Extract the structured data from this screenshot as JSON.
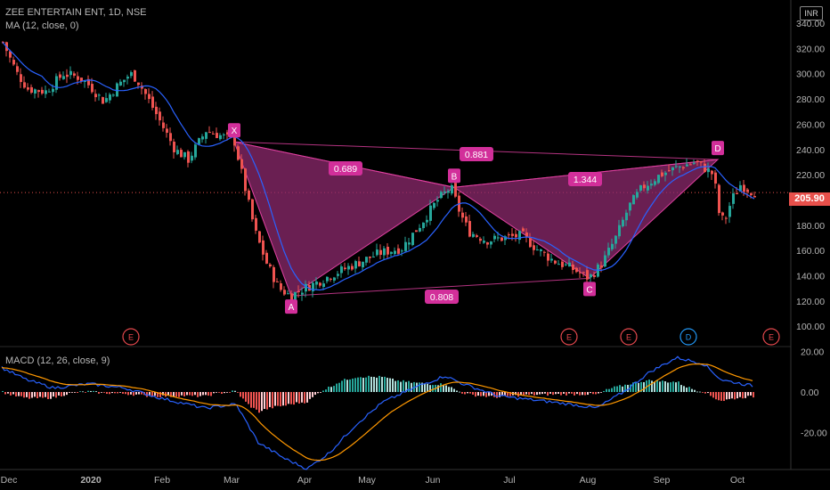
{
  "header": {
    "symbol_line": "ZEE ENTERTAIN ENT, 1D, NSE",
    "ma_line": "MA (12, close, 0)",
    "macd_line": "MACD (12, 26, close, 9)",
    "currency": "INR"
  },
  "price_axis": {
    "ticks": [
      "340.00",
      "320.00",
      "300.00",
      "280.00",
      "260.00",
      "240.00",
      "220.00",
      "200.00",
      "180.00",
      "160.00",
      "140.00",
      "120.00",
      "100.00"
    ],
    "current": "205.90"
  },
  "macd_axis": {
    "ticks": [
      "20.00",
      "0.00",
      "-20.00"
    ]
  },
  "time_axis": {
    "labels": [
      "Dec",
      "2020",
      "Feb",
      "Mar",
      "Apr",
      "May",
      "Jun",
      "Jul",
      "Aug",
      "Sep",
      "Oct"
    ]
  },
  "colors": {
    "up": "#26a69a",
    "down": "#ef5350",
    "pattern_fill": "#8e2a6d",
    "pattern_line": "#e040a0",
    "label_bg": "#d22f9a",
    "macd_line": "#2962ff",
    "signal_line": "#ff9800",
    "event": "#e5484d",
    "dividend": "#2196f3"
  },
  "chart_data": {
    "type": "candlestick",
    "title": "ZEE ENTERTAIN ENT, 1D, NSE",
    "ylim": [
      95,
      345
    ],
    "pattern_points": [
      {
        "label": "X",
        "date": "Mar",
        "price": 246
      },
      {
        "label": "A",
        "date": "late Mar",
        "price": 124
      },
      {
        "label": "B",
        "date": "early Jun",
        "price": 210
      },
      {
        "label": "C",
        "date": "Aug",
        "price": 138
      },
      {
        "label": "D",
        "date": "late Sep",
        "price": 232
      }
    ],
    "ratios": [
      "0.689",
      "0.881",
      "1.344",
      "0.808"
    ],
    "event_markers": [
      "E",
      "E",
      "E",
      "D",
      "E"
    ],
    "macd_ylim": [
      -40,
      22
    ]
  }
}
